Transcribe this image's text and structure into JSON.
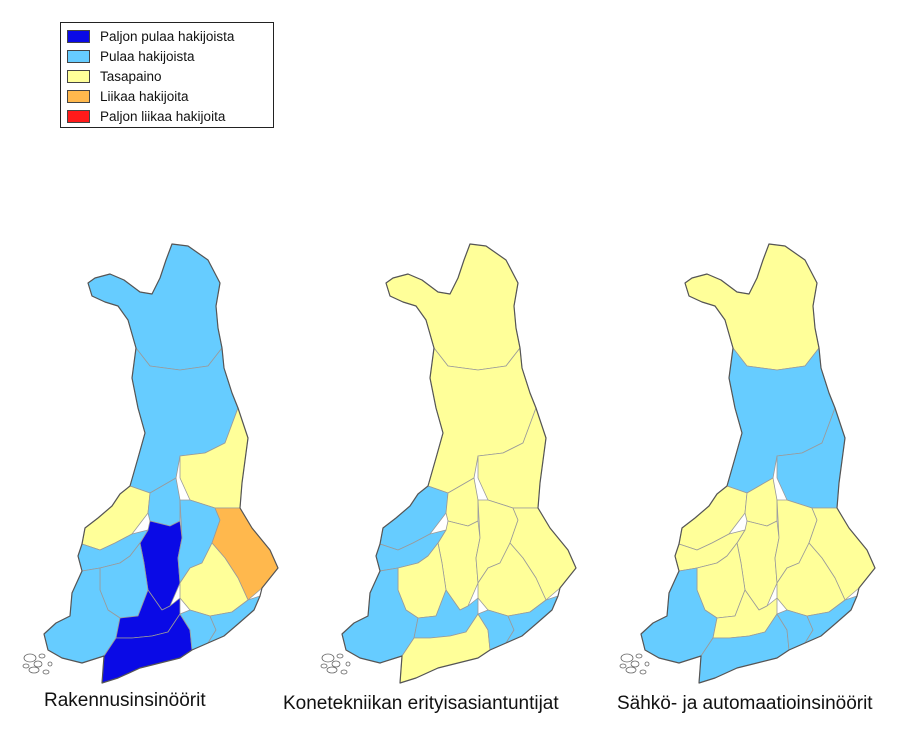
{
  "legend": {
    "items": [
      {
        "label": "Paljon pulaa hakijoista",
        "color": "#0a0ae6"
      },
      {
        "label": "Pulaa hakijoista",
        "color": "#66ccff"
      },
      {
        "label": "Tasapaino",
        "color": "#ffff99"
      },
      {
        "label": "Liikaa hakijoita",
        "color": "#ffb84d"
      },
      {
        "label": "Paljon liikaa hakijoita",
        "color": "#ff1a1a"
      }
    ]
  },
  "maps": [
    {
      "caption": "Rakennusinsinöörit",
      "regions": {
        "lapland": "Pulaa hakijoista",
        "north_ostrobothnia": "Pulaa hakijoista",
        "kainuu": "Tasapaino",
        "ostrobothnia_coast": "Tasapaino",
        "central_ostrobothnia": "Pulaa hakijoista",
        "central_finland_north": "Paljon pulaa hakijoista",
        "north_savo": "Pulaa hakijoista",
        "north_karelia": "Liikaa hakijoita",
        "satakunta": "Pulaa hakijoista",
        "pirkanmaa": "Pulaa hakijoista",
        "south_savo": "Tasapaino",
        "southwest": "Pulaa hakijoista",
        "tavastia": "Paljon pulaa hakijoista",
        "uusimaa": "Paljon pulaa hakijoista",
        "kymenlaakso": "Pulaa hakijoista",
        "south_karelia": "Pulaa hakijoista"
      }
    },
    {
      "caption": "Konetekniikan erityisasiantuntijat",
      "regions": {
        "lapland": "Tasapaino",
        "north_ostrobothnia": "Tasapaino",
        "kainuu": "Tasapaino",
        "ostrobothnia_coast": "Pulaa hakijoista",
        "central_ostrobothnia": "Tasapaino",
        "central_finland_north": "Tasapaino",
        "north_savo": "Tasapaino",
        "north_karelia": "Tasapaino",
        "satakunta": "Pulaa hakijoista",
        "pirkanmaa": "Tasapaino",
        "south_savo": "Tasapaino",
        "southwest": "Pulaa hakijoista",
        "tavastia": "Pulaa hakijoista",
        "uusimaa": "Tasapaino",
        "kymenlaakso": "Pulaa hakijoista",
        "south_karelia": "Pulaa hakijoista"
      }
    },
    {
      "caption": "Sähkö- ja automaatioinsinöörit",
      "regions": {
        "lapland": "Tasapaino",
        "north_ostrobothnia": "Pulaa hakijoista",
        "kainuu": "Pulaa hakijoista",
        "ostrobothnia_coast": "Tasapaino",
        "central_ostrobothnia": "Tasapaino",
        "central_finland_north": "Tasapaino",
        "north_savo": "Tasapaino",
        "north_karelia": "Tasapaino",
        "satakunta": "Tasapaino",
        "pirkanmaa": "Tasapaino",
        "south_savo": "Tasapaino",
        "southwest": "Pulaa hakijoista",
        "tavastia": "Tasapaino",
        "uusimaa": "Pulaa hakijoista",
        "kymenlaakso": "Pulaa hakijoista",
        "south_karelia": "Pulaa hakijoista"
      }
    }
  ]
}
